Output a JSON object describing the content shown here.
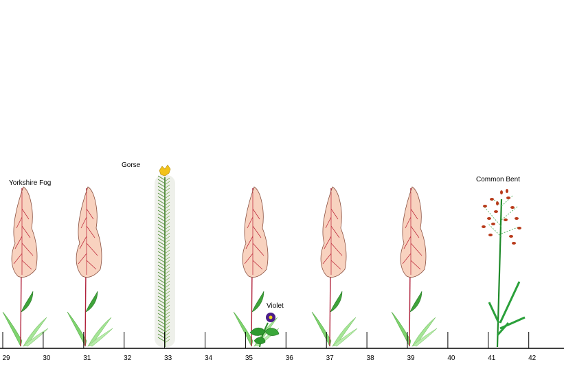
{
  "labels": {
    "yorkshire_fog": "Yorkshire Fog",
    "gorse": "Gorse",
    "violet": "Violet",
    "common_bent": "Common Bent"
  },
  "ruler": {
    "labels": [
      "29",
      "30",
      "31",
      "32",
      "33",
      "34",
      "35",
      "36",
      "37",
      "38",
      "39",
      "40",
      "41",
      "42"
    ]
  }
}
